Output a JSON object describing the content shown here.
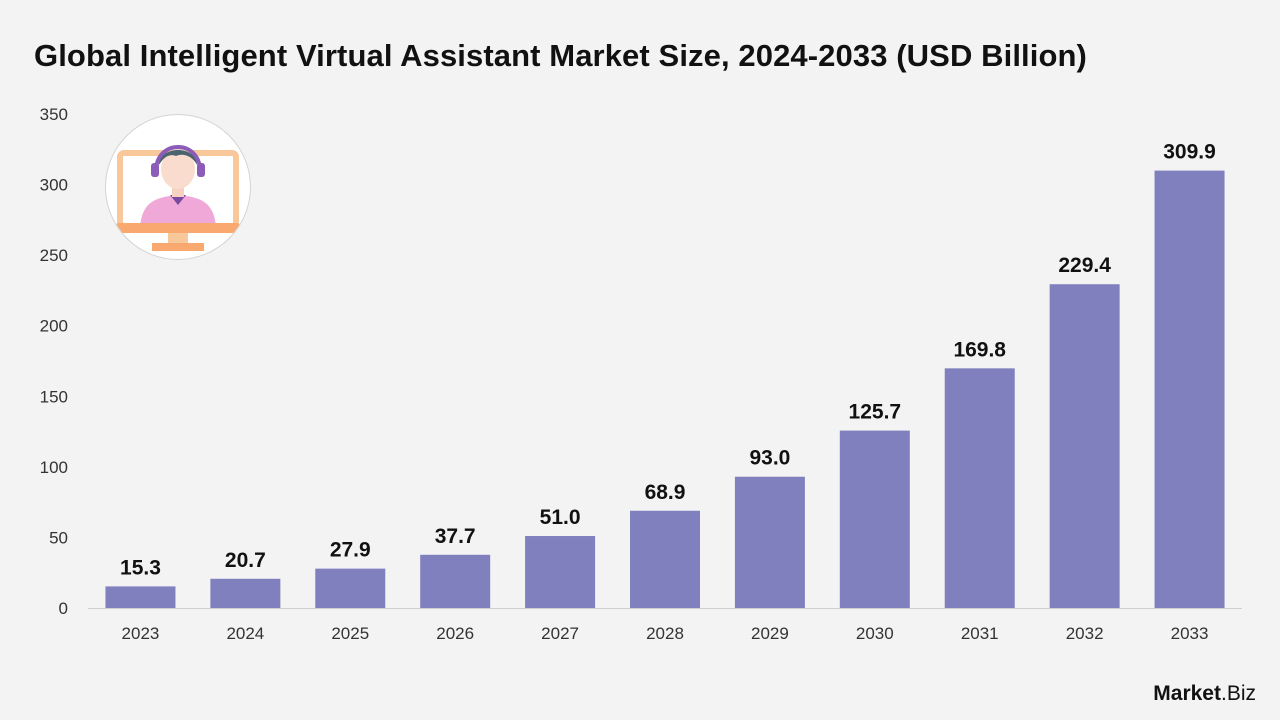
{
  "title": "Global Intelligent Virtual Assistant Market Size, 2024-2033 (USD Billion)",
  "brand": {
    "name": "Market",
    "suffix": ".Biz"
  },
  "illustration": "virtual-assistant-avatar-icon",
  "colors": {
    "bar": "#8080bf",
    "background": "#f3f3f3",
    "text": "#111111",
    "axis": "#d0d0d0"
  },
  "chart_data": {
    "type": "bar",
    "title": "Global Intelligent Virtual Assistant Market Size, 2024-2033 (USD Billion)",
    "xlabel": "",
    "ylabel": "",
    "categories": [
      "2023",
      "2024",
      "2025",
      "2026",
      "2027",
      "2028",
      "2029",
      "2030",
      "2031",
      "2032",
      "2033"
    ],
    "values": [
      15.3,
      20.7,
      27.9,
      37.7,
      51.0,
      68.9,
      93.0,
      125.7,
      169.8,
      229.4,
      309.9
    ],
    "value_labels": [
      "15.3",
      "20.7",
      "27.9",
      "37.7",
      "51.0",
      "68.9",
      "93.0",
      "125.7",
      "169.8",
      "229.4",
      "309.9"
    ],
    "ylim": [
      0,
      350
    ],
    "yticks": [
      0,
      50,
      100,
      150,
      200,
      250,
      300,
      350
    ],
    "grid": false,
    "legend": "none"
  }
}
